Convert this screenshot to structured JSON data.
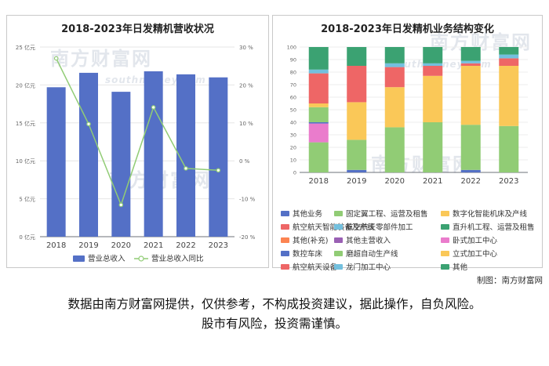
{
  "credit": "制图：南方财富网",
  "disclaimer": {
    "line1": "数据由南方财富网提供，仅供参考，不构成投资建议，据此操作，自负风险。",
    "line2": "股市有风险，投资需谨慎。"
  },
  "watermarks": [
    "南方财富网",
    "southmoney.com"
  ],
  "chart_data": [
    {
      "type": "bar",
      "title": "2018-2023年日发精机营收状况",
      "categories": [
        "2018",
        "2019",
        "2020",
        "2021",
        "2022",
        "2023"
      ],
      "y_ticks": [
        "0 亿元",
        "5 亿元",
        "10 亿元",
        "15 亿元",
        "20 亿元",
        "25 亿元"
      ],
      "y2_ticks": [
        "-20 %",
        "-10 %",
        "0 %",
        "10 %",
        "20 %",
        "30 %"
      ],
      "ylim": [
        0,
        25
      ],
      "y2lim": [
        -20,
        30
      ],
      "series": [
        {
          "name": "营业总收入",
          "kind": "bar",
          "axis": "left",
          "color": "#5470c6",
          "values": [
            19.7,
            21.6,
            19.1,
            21.8,
            21.4,
            21.0
          ]
        },
        {
          "name": "营业总收入同比",
          "kind": "line",
          "axis": "right",
          "color": "#91cc75",
          "values": [
            27.0,
            9.7,
            -11.6,
            14.1,
            -2.0,
            -2.5
          ]
        }
      ],
      "legend": "bottom",
      "grid": true
    },
    {
      "type": "bar",
      "stacked": true,
      "title": "2018-2023年日发精机业务结构变化",
      "categories": [
        "2018",
        "2019",
        "2020",
        "2021",
        "2022",
        "2023"
      ],
      "y_ticks": [
        "0",
        "10",
        "20",
        "30",
        "40",
        "50",
        "60",
        "70",
        "80",
        "90",
        "100"
      ],
      "ylim": [
        0,
        100
      ],
      "series": [
        {
          "name": "其他业务",
          "color": "#5470c6",
          "values": [
            0,
            2,
            0,
            0,
            2,
            0
          ]
        },
        {
          "name": "固定翼工程、运营及租售",
          "color": "#91cc75",
          "values": [
            24,
            24,
            36,
            40,
            36,
            37
          ]
        },
        {
          "name": "数字化智能机床及产线",
          "color": "#fac858",
          "values": [
            0,
            30,
            32,
            37,
            47,
            48
          ]
        },
        {
          "name": "航空航天智能装备及产线",
          "color": "#ee6666",
          "values": [
            0,
            29,
            16,
            8,
            2,
            6
          ]
        },
        {
          "name": "航空航天零部件加工",
          "color": "#73c0de",
          "values": [
            0,
            0,
            3,
            2,
            2,
            3
          ]
        },
        {
          "name": "直升机工程、运营及租售",
          "color": "#3ba272",
          "values": [
            0,
            15,
            13,
            13,
            11,
            6
          ]
        },
        {
          "name": "其他(补充)",
          "color": "#fc8452",
          "values": [
            0,
            0,
            0,
            0,
            0,
            0
          ]
        },
        {
          "name": "其他主营收入",
          "color": "#9a60b4",
          "values": [
            0,
            0,
            0,
            0,
            0,
            0
          ]
        },
        {
          "name": "卧式加工中心",
          "color": "#ea7ccc",
          "values": [
            15,
            0,
            0,
            0,
            0,
            0
          ]
        },
        {
          "name": "数控车床",
          "color": "#5470c6",
          "values": [
            1,
            0,
            0,
            0,
            0,
            0
          ]
        },
        {
          "name": "磨超自动生产线",
          "color": "#91cc75",
          "values": [
            12,
            0,
            0,
            0,
            0,
            0
          ]
        },
        {
          "name": "立式加工中心",
          "color": "#fac858",
          "values": [
            3,
            0,
            0,
            0,
            0,
            0
          ]
        },
        {
          "name": "航空航天设备",
          "color": "#ee6666",
          "values": [
            24,
            0,
            0,
            0,
            0,
            0
          ]
        },
        {
          "name": "龙门加工中心",
          "color": "#73c0de",
          "values": [
            3,
            0,
            0,
            0,
            0,
            0
          ]
        },
        {
          "name": "其他",
          "color": "#3ba272",
          "values": [
            18,
            0,
            0,
            0,
            0,
            0
          ]
        }
      ],
      "legend": "bottom",
      "grid": true
    }
  ]
}
